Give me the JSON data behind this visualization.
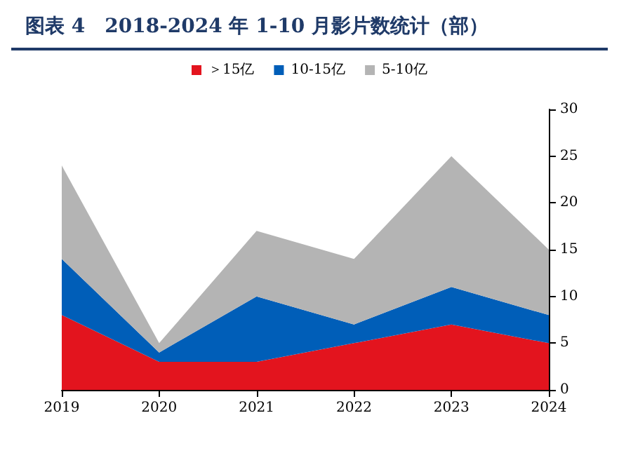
{
  "chart_data": {
    "type": "area",
    "stacked": true,
    "title": "图表 4　2018-2024 年 1-10 月影片数统计（部）",
    "categories": [
      "2019",
      "2020",
      "2021",
      "2022",
      "2023",
      "2024"
    ],
    "series": [
      {
        "name": "＞15亿",
        "color": "#e3141e",
        "values": [
          8,
          3,
          3,
          5,
          7,
          5
        ]
      },
      {
        "name": "10-15亿",
        "color": "#005eb8",
        "values": [
          6,
          1,
          7,
          2,
          4,
          3
        ]
      },
      {
        "name": "5-10亿",
        "color": "#b4b4b4",
        "values": [
          10,
          1,
          7,
          7,
          14,
          7
        ]
      }
    ],
    "ylim": [
      0,
      30
    ],
    "yticks": [
      0,
      5,
      10,
      15,
      20,
      25,
      30
    ],
    "grid": false,
    "legend": "top"
  }
}
